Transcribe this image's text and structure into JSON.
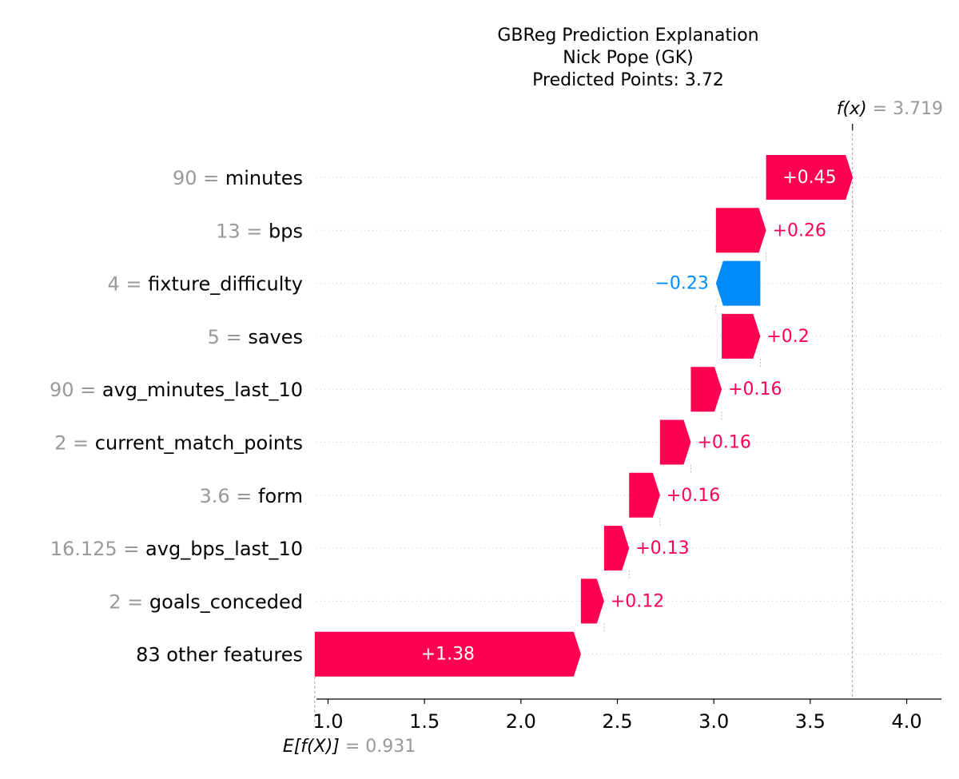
{
  "title_lines": [
    "GBReg Prediction Explanation",
    "Nick Pope (GK)",
    "Predicted Points: 3.72"
  ],
  "colors": {
    "positive": "#ff0051",
    "negative": "#008bfb",
    "value_gray": "#999999",
    "grid": "#cccccc"
  },
  "chart_data": {
    "type": "waterfall",
    "base_value": 0.931,
    "base_label": "E[f(X)]",
    "base_value_text": "= 0.931",
    "output_value": 3.719,
    "output_label": "f(x)",
    "output_value_text": "= 3.719",
    "xlim": [
      0.94,
      4.18
    ],
    "xticks": [
      1.0,
      1.5,
      2.0,
      2.5,
      3.0,
      3.5,
      4.0
    ],
    "xtick_labels": [
      "1.0",
      "1.5",
      "2.0",
      "2.5",
      "3.0",
      "3.5",
      "4.0"
    ],
    "features": [
      {
        "value": "90",
        "name": "minutes",
        "contribution": 0.45,
        "label": "+0.45"
      },
      {
        "value": "13",
        "name": "bps",
        "contribution": 0.26,
        "label": "+0.26"
      },
      {
        "value": "4",
        "name": "fixture_difficulty",
        "contribution": -0.23,
        "label": "−0.23"
      },
      {
        "value": "5",
        "name": "saves",
        "contribution": 0.2,
        "label": "+0.2"
      },
      {
        "value": "90",
        "name": "avg_minutes_last_10",
        "contribution": 0.16,
        "label": "+0.16"
      },
      {
        "value": "2",
        "name": "current_match_points",
        "contribution": 0.16,
        "label": "+0.16"
      },
      {
        "value": "3.6",
        "name": "form",
        "contribution": 0.16,
        "label": "+0.16"
      },
      {
        "value": "16.125",
        "name": "avg_bps_last_10",
        "contribution": 0.13,
        "label": "+0.13"
      },
      {
        "value": "2",
        "name": "goals_conceded",
        "contribution": 0.12,
        "label": "+0.12"
      },
      {
        "value": "",
        "name": "83 other features",
        "contribution": 1.38,
        "label": "+1.38"
      }
    ],
    "label_inside": [
      true,
      false,
      false,
      false,
      false,
      false,
      false,
      false,
      false,
      true
    ]
  }
}
